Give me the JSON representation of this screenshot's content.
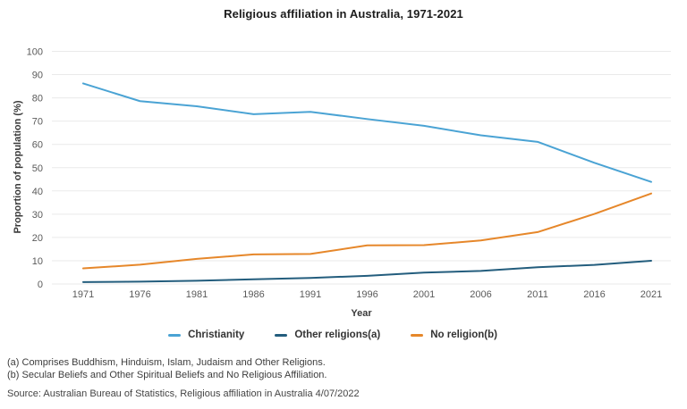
{
  "chart_data": {
    "type": "line",
    "title": "Religious affiliation in Australia, 1971-2021",
    "xlabel": "Year",
    "ylabel": "Proportion of population (%)",
    "ylim": [
      0,
      100
    ],
    "ytick_step": 10,
    "grid": "horizontal",
    "legend_position": "bottom",
    "categories": [
      "1971",
      "1976",
      "1981",
      "1986",
      "1991",
      "1996",
      "2001",
      "2006",
      "2011",
      "2016",
      "2021"
    ],
    "series": [
      {
        "name": "Christianity",
        "color": "#4AA3D4",
        "values": [
          86.2,
          78.6,
          76.4,
          73.0,
          74.0,
          70.9,
          68.0,
          63.9,
          61.1,
          52.1,
          43.9
        ]
      },
      {
        "name": "Other religions(a)",
        "color": "#235D7D",
        "values": [
          0.8,
          1.0,
          1.4,
          2.0,
          2.6,
          3.5,
          4.9,
          5.6,
          7.2,
          8.2,
          10.0
        ]
      },
      {
        "name": "No religion(b)",
        "color": "#E6872A",
        "values": [
          6.7,
          8.3,
          10.8,
          12.7,
          12.9,
          16.6,
          16.7,
          18.7,
          22.3,
          30.1,
          38.9
        ]
      }
    ],
    "colors": {
      "gridline": "#EAEAEA",
      "tick_label": "#5A5A5A",
      "title_text": "#1C1C1C"
    }
  },
  "footnotes": {
    "a": "(a) Comprises Buddhism, Hinduism, Islam, Judaism and Other Religions.",
    "b": "(b) Secular Beliefs and Other Spiritual Beliefs and No Religious Affiliation.",
    "source": "Source: Australian Bureau of Statistics, Religious affiliation in Australia 4/07/2022"
  }
}
